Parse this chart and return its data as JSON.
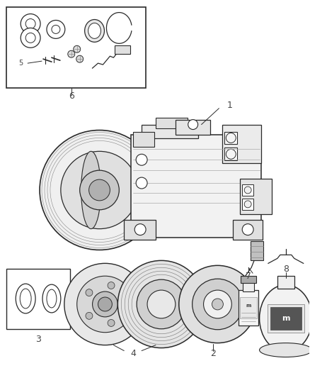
{
  "background_color": "#ffffff",
  "line_color": "#2a2a2a",
  "label_color": "#444444",
  "figsize": [
    4.38,
    5.33
  ],
  "dpi": 100
}
